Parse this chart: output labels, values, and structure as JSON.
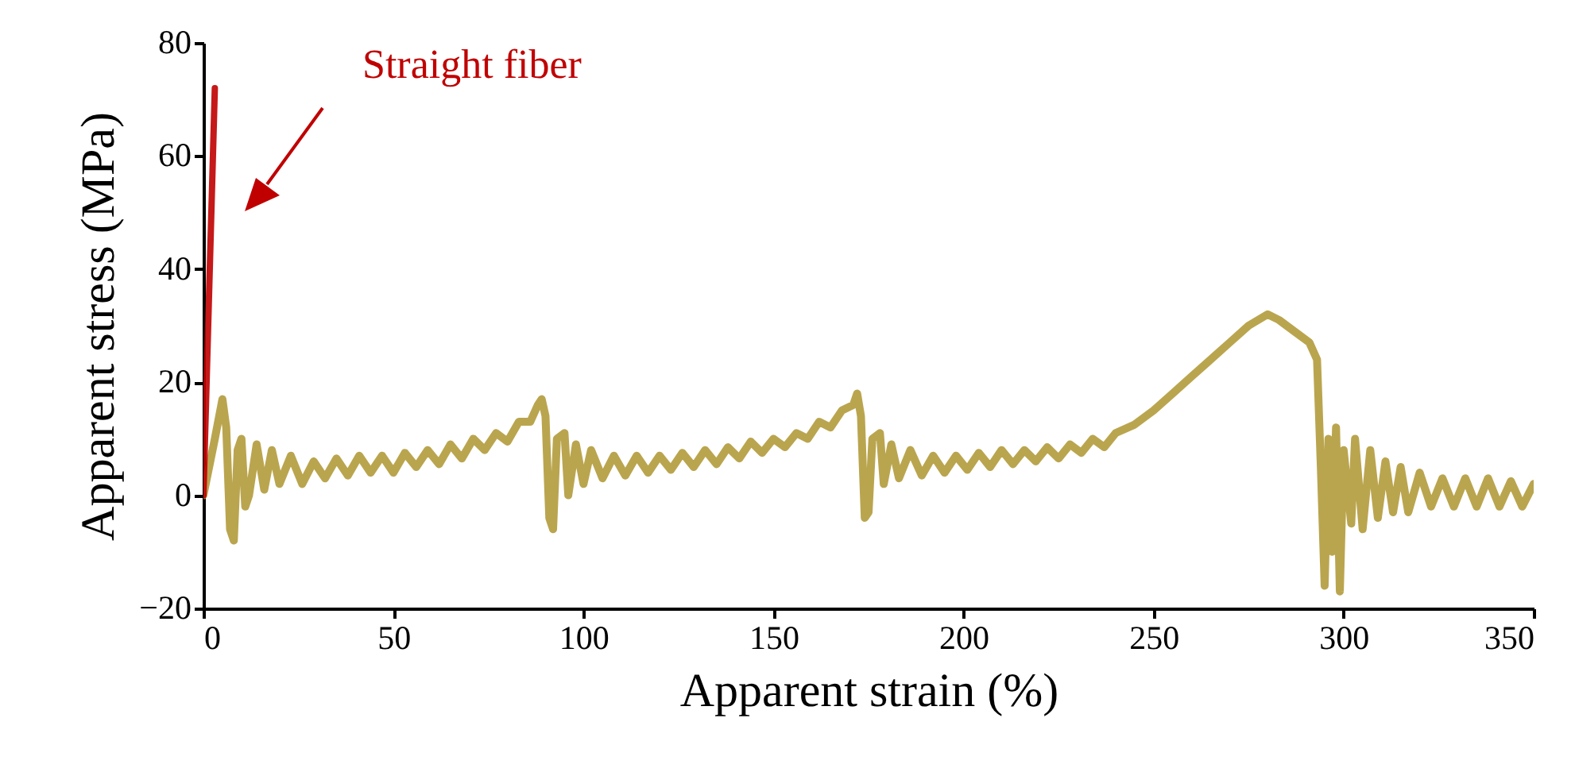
{
  "chart_data": {
    "type": "line",
    "xlabel": "Apparent strain (%)",
    "ylabel": "Apparent stress (MPa)",
    "xlim": [
      0,
      350
    ],
    "xticks": [
      0,
      50,
      100,
      150,
      200,
      250,
      300,
      350
    ],
    "ylim": [
      -20,
      80
    ],
    "yticks": [
      -20,
      0,
      20,
      40,
      60,
      80
    ],
    "grid": false,
    "annotations": [
      "Straight fiber"
    ],
    "series": [
      {
        "color": "#b39b3c",
        "x": [
          0,
          3,
          5,
          6,
          7,
          8,
          9,
          10,
          11,
          12,
          14,
          16,
          18,
          20,
          23,
          26,
          29,
          32,
          35,
          38,
          41,
          44,
          47,
          50,
          53,
          56,
          59,
          62,
          65,
          68,
          71,
          74,
          77,
          80,
          83,
          86,
          88,
          89,
          90,
          91,
          92,
          93,
          95,
          96,
          98,
          100,
          102,
          105,
          108,
          111,
          114,
          117,
          120,
          123,
          126,
          129,
          132,
          135,
          138,
          141,
          144,
          147,
          150,
          153,
          156,
          159,
          162,
          165,
          168,
          171,
          172,
          173,
          174,
          175,
          176,
          178,
          179,
          181,
          183,
          186,
          189,
          192,
          195,
          198,
          201,
          204,
          207,
          210,
          213,
          216,
          219,
          222,
          225,
          228,
          231,
          234,
          237,
          240,
          245,
          250,
          255,
          260,
          265,
          270,
          275,
          280,
          283,
          287,
          291,
          293,
          294,
          295,
          296,
          297,
          298,
          299,
          300,
          302,
          303,
          305,
          307,
          309,
          311,
          313,
          315,
          317,
          320,
          323,
          326,
          329,
          332,
          335,
          338,
          341,
          344,
          347,
          350
        ],
        "values": [
          0,
          10,
          17,
          12,
          -6,
          -8,
          8,
          10,
          -2,
          0,
          9,
          1,
          8,
          2,
          7,
          2,
          6,
          3,
          6.5,
          3.5,
          7,
          4,
          7,
          4,
          7.5,
          5,
          8,
          5.5,
          9,
          6.5,
          10,
          8,
          11,
          9.5,
          13,
          13,
          16,
          17,
          14,
          -4,
          -6,
          10,
          11,
          0,
          9,
          2,
          8,
          3,
          7,
          3.5,
          7,
          4,
          7,
          4.5,
          7.5,
          5,
          8,
          5.5,
          8.5,
          6.5,
          9.5,
          7.5,
          10,
          8.5,
          11,
          10,
          13,
          12,
          15,
          16,
          18,
          14,
          -4,
          -3,
          10,
          11,
          2,
          9,
          3,
          8,
          3.5,
          7,
          4,
          7,
          4.5,
          7.5,
          5,
          8,
          5.5,
          8,
          6,
          8.5,
          6.5,
          9,
          7.5,
          10,
          8.5,
          11,
          12.5,
          15,
          18,
          21,
          24,
          27,
          30,
          32,
          31,
          29,
          27,
          24,
          5,
          -16,
          10,
          -10,
          12,
          -17,
          8,
          -5,
          10,
          -6,
          8,
          -4,
          6,
          -3,
          5,
          -3,
          4,
          -2,
          3,
          -2,
          3,
          -2,
          3,
          -2,
          2.5,
          -2,
          2
        ]
      },
      {
        "color": "#c00000",
        "x": [
          0,
          3
        ],
        "values": [
          0,
          72
        ]
      }
    ]
  }
}
